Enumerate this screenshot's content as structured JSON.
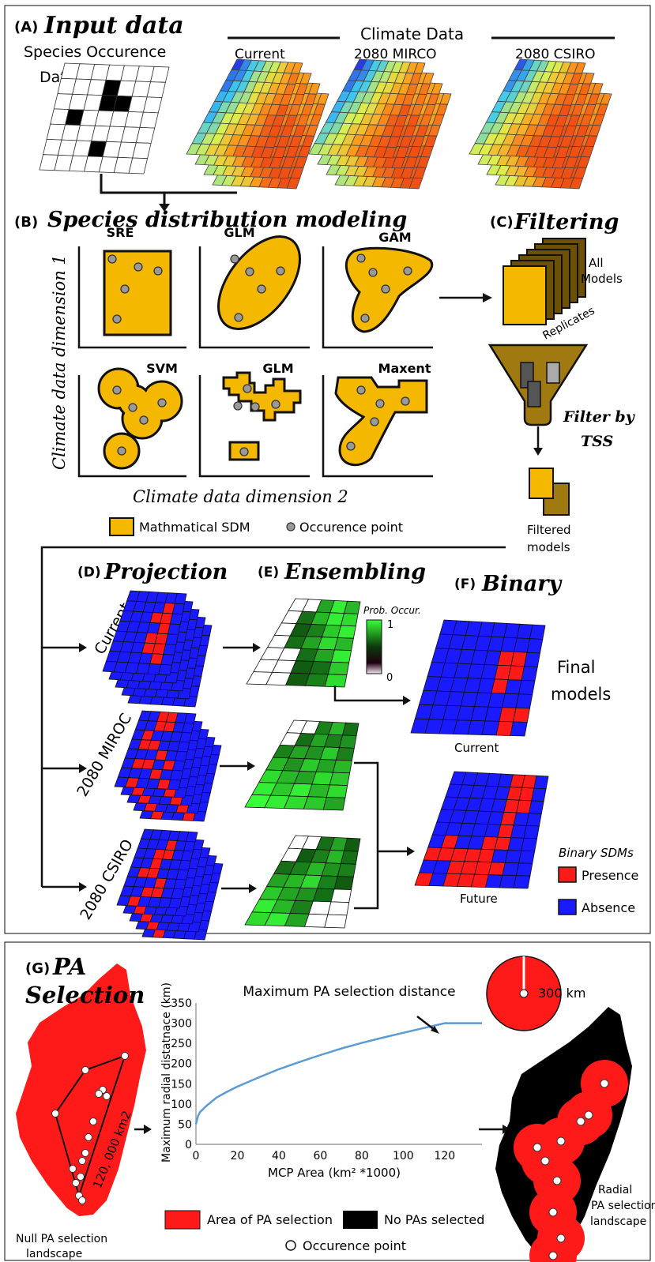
{
  "panelA": {
    "letter": "(A)",
    "title": "Input data",
    "species_line1": "Species Occurence",
    "species_line2": "Data",
    "climate_title": "Climate Data",
    "sets": [
      "Current",
      "2080 MIRCO",
      "2080 CSIRO"
    ]
  },
  "panelB": {
    "letter": "(B)",
    "title": "Species distribution modeling",
    "models": [
      "SRE",
      "GLM",
      "GAM",
      "SVM",
      "GLM",
      "Maxent"
    ],
    "y_axis": "Climate data dimension 1",
    "x_axis": "Climate data dimension 2",
    "legend_sdm": "Mathmatical SDM",
    "legend_point": "Occurence point"
  },
  "panelC": {
    "letter": "(C)",
    "title": "Filtering",
    "all_models_1": "All",
    "all_models_2": "Models",
    "replicates": "Replicates",
    "filter_1": "Filter by",
    "filter_2": "TSS",
    "filtered_1": "Filtered",
    "filtered_2": "models"
  },
  "panelD": {
    "letter": "(D)",
    "title": "Projection",
    "rows": [
      "Current",
      "2080 MIROC",
      "2080  CSIRO"
    ]
  },
  "panelE": {
    "letter": "(E)",
    "title": "Ensembling",
    "colorbar_title": "Prob. Occur.",
    "colorbar_max": "1",
    "colorbar_min": "0"
  },
  "panelF": {
    "letter": "(F)",
    "title": "Binary",
    "final_1": "Final",
    "final_2": "models",
    "current": "Current",
    "future": "Future",
    "legend_title": "Binary SDMs",
    "presence": "Presence",
    "absence": "Absence"
  },
  "panelG": {
    "letter": "(G)",
    "title_1": "PA",
    "title_2": "Selection",
    "mcp_label": "120, 000 km2",
    "null_1": "Null PA selection",
    "null_2": "landscape",
    "radial_1": "Radial",
    "radial_2": "PA selection",
    "radial_3": "landscape",
    "radius_label": "300 km",
    "legend_area": "Area of PA selection",
    "legend_none": "No PAs selected",
    "legend_point": "Occurence point"
  },
  "colors": {
    "presence": "#ff1a1a",
    "absence": "#1a1aff",
    "sdm_fill": "#f5b800",
    "curve": "#5b9bd5",
    "green_high": "#39ff39",
    "green_low": "#0d4a0d"
  },
  "chart_data": {
    "type": "line",
    "title": "Maximum PA selection distance",
    "xlabel": "MCP Area (km² *1000)",
    "ylabel": "Maximum radial distatnace (km)",
    "xlim": [
      0,
      138
    ],
    "ylim": [
      0,
      350
    ],
    "xticks": [
      "0",
      "20",
      "40",
      "60",
      "80",
      "100",
      "120"
    ],
    "yticks": [
      "0",
      "50",
      "100",
      "150",
      "200",
      "250",
      "300",
      "350"
    ],
    "grid": false,
    "series": [
      {
        "x": [
          0,
          1,
          2,
          5,
          10,
          15,
          20,
          30,
          40,
          50,
          60,
          70,
          80,
          90,
          100,
          110,
          120,
          125,
          130,
          138
        ],
        "y": [
          50,
          70,
          80,
          95,
          116,
          130,
          143,
          165,
          186,
          204,
          221,
          237,
          251,
          264,
          276,
          288,
          300,
          300,
          300,
          300
        ]
      }
    ]
  }
}
